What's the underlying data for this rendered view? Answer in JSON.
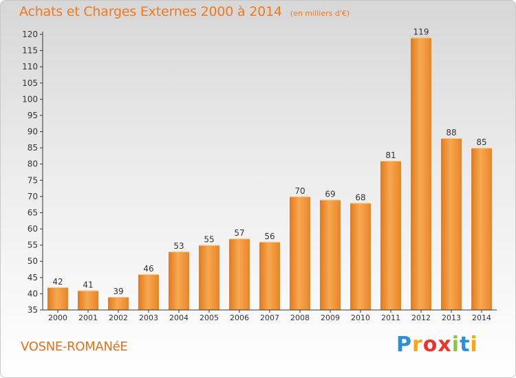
{
  "header": {
    "title": "Achats et Charges Externes 2000 à 2014",
    "unit": "(en milliers d'€)"
  },
  "footer": {
    "commune": "VOSNE-ROMANéE",
    "brand_letters": [
      {
        "ch": "P",
        "color": "#2a8fd6"
      },
      {
        "ch": "r",
        "color": "#f5a623"
      },
      {
        "ch": "o",
        "color": "#e8352e"
      },
      {
        "ch": "x",
        "color": "#e8352e"
      },
      {
        "ch": "i",
        "color": "#8cc63f"
      },
      {
        "ch": "t",
        "color": "#2a8fd6"
      },
      {
        "ch": "i",
        "color": "#f5a623"
      }
    ]
  },
  "chart_data": {
    "type": "bar",
    "title": "Achats et Charges Externes 2000 à 2014",
    "subtitle": "(en milliers d'€)",
    "xlabel": "",
    "ylabel": "",
    "categories": [
      "2000",
      "2001",
      "2002",
      "2003",
      "2004",
      "2005",
      "2006",
      "2007",
      "2008",
      "2009",
      "2010",
      "2011",
      "2012",
      "2013",
      "2014"
    ],
    "values": [
      42,
      41,
      39,
      46,
      53,
      55,
      57,
      56,
      70,
      69,
      68,
      81,
      119,
      88,
      85
    ],
    "ylim": [
      35,
      120
    ],
    "yticks": [
      35,
      40,
      45,
      50,
      55,
      60,
      65,
      70,
      75,
      80,
      85,
      90,
      95,
      100,
      105,
      110,
      115,
      120
    ],
    "grid": false,
    "legend": "none",
    "colors": {
      "bar_light": "#f7a850",
      "bar_dark": "#e07a20",
      "axis": "#333333"
    }
  }
}
